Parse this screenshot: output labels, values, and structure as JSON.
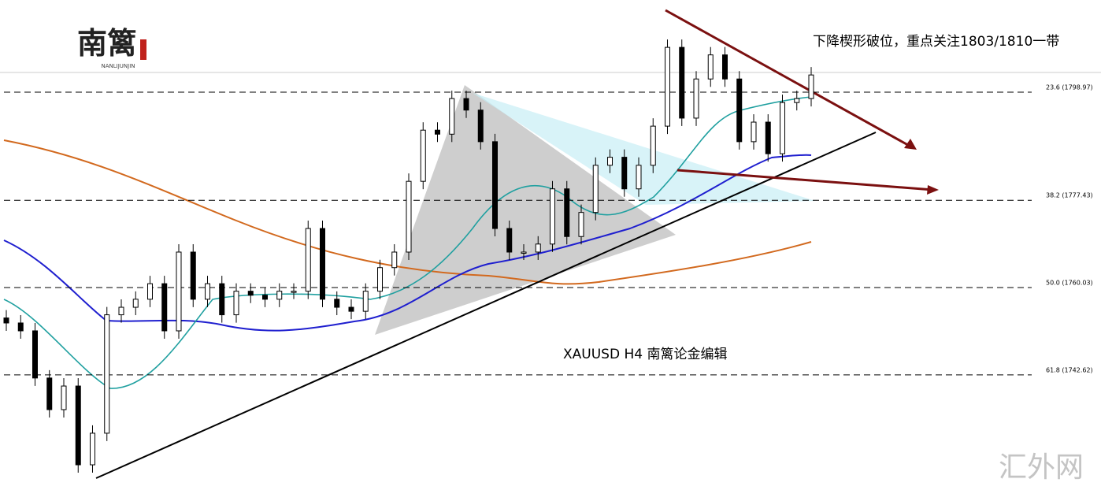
{
  "logo": {
    "title": "南篱",
    "subtitle": "NANLIJUNJIN"
  },
  "annotation": "下降楔形破位，重点关注1803/1810一带",
  "caption": "XAUUSD  H4  南篱论金编辑",
  "watermark": "汇外网",
  "fib_levels": [
    {
      "label": "23.6 (1798.97)",
      "price": 1798.97
    },
    {
      "label": "38.2 (1777.43)",
      "price": 1777.43
    },
    {
      "label": "50.0 (1760.03)",
      "price": 1760.03
    },
    {
      "label": "61.8 (1742.62)",
      "price": 1742.62
    }
  ],
  "candles": {
    "close": [
      1752.97,
      1751.4,
      1742.0,
      1735.7,
      1740.4,
      1724.7,
      1731.0,
      1754.6,
      1756.1,
      1757.7,
      1760.8,
      1751.4,
      1767.1,
      1757.7,
      1760.8,
      1754.6,
      1759.3,
      1758.5,
      1757.7,
      1759.3,
      1759.3,
      1771.8,
      1757.7,
      1756.1,
      1755.3,
      1759.3,
      1764.0,
      1767.1,
      1781.2,
      1791.4,
      1790.6,
      1797.7,
      1795.4,
      1789.1,
      1771.8,
      1767.1,
      1767.1,
      1768.7,
      1779.7,
      1770.2,
      1775.0,
      1784.4,
      1786.0,
      1779.7,
      1784.4,
      1792.2,
      1807.9,
      1793.8,
      1801.6,
      1806.4,
      1801.6,
      1789.1,
      1793.0,
      1786.7,
      1796.9,
      1797.7,
      1802.4
    ]
  }
}
